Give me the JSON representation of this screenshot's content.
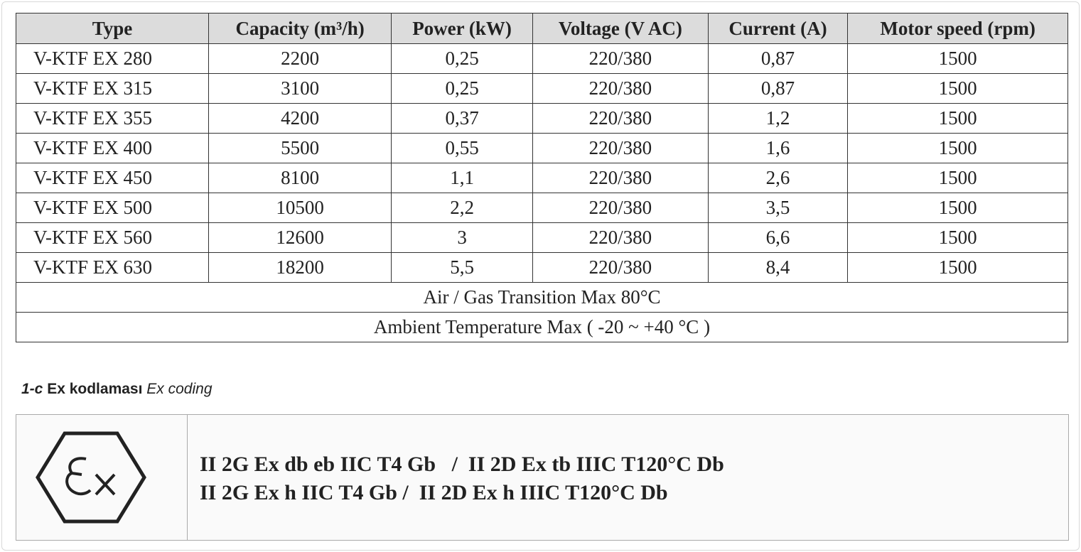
{
  "table": {
    "columns": [
      "Type",
      "Capacity (m³/h)",
      "Power (kW)",
      "Voltage (V AC)",
      "Current (A)",
      "Motor speed (rpm)"
    ],
    "rows": [
      [
        "V-KTF EX 280",
        "2200",
        "0,25",
        "220/380",
        "0,87",
        "1500"
      ],
      [
        "V-KTF EX 315",
        "3100",
        "0,25",
        "220/380",
        "0,87",
        "1500"
      ],
      [
        "V-KTF EX 355",
        "4200",
        "0,37",
        "220/380",
        "1,2",
        "1500"
      ],
      [
        "V-KTF EX 400",
        "5500",
        "0,55",
        "220/380",
        "1,6",
        "1500"
      ],
      [
        "V-KTF EX 450",
        "8100",
        "1,1",
        "220/380",
        "2,6",
        "1500"
      ],
      [
        "V-KTF EX 500",
        "10500",
        "2,2",
        "220/380",
        "3,5",
        "1500"
      ],
      [
        "V-KTF EX 560",
        "12600",
        "3",
        "220/380",
        "6,6",
        "1500"
      ],
      [
        "V-KTF EX 630",
        "18200",
        "5,5",
        "220/380",
        "8,4",
        "1500"
      ]
    ],
    "notes": [
      "Air / Gas Transition Max 80°C",
      "Ambient Temperature Max ( -20 ~ +40 °C )"
    ]
  },
  "section": {
    "number": "1-c",
    "title": "Ex kodlaması",
    "subtitle": "Ex coding"
  },
  "coding": {
    "lines": [
      "II 2G Ex db eb IIC T4 Gb   /  II 2D Ex tb IIIC T120°C Db",
      "II 2G Ex h IIC T4 Gb /  II 2D Ex h IIIC T120°C Db"
    ]
  }
}
